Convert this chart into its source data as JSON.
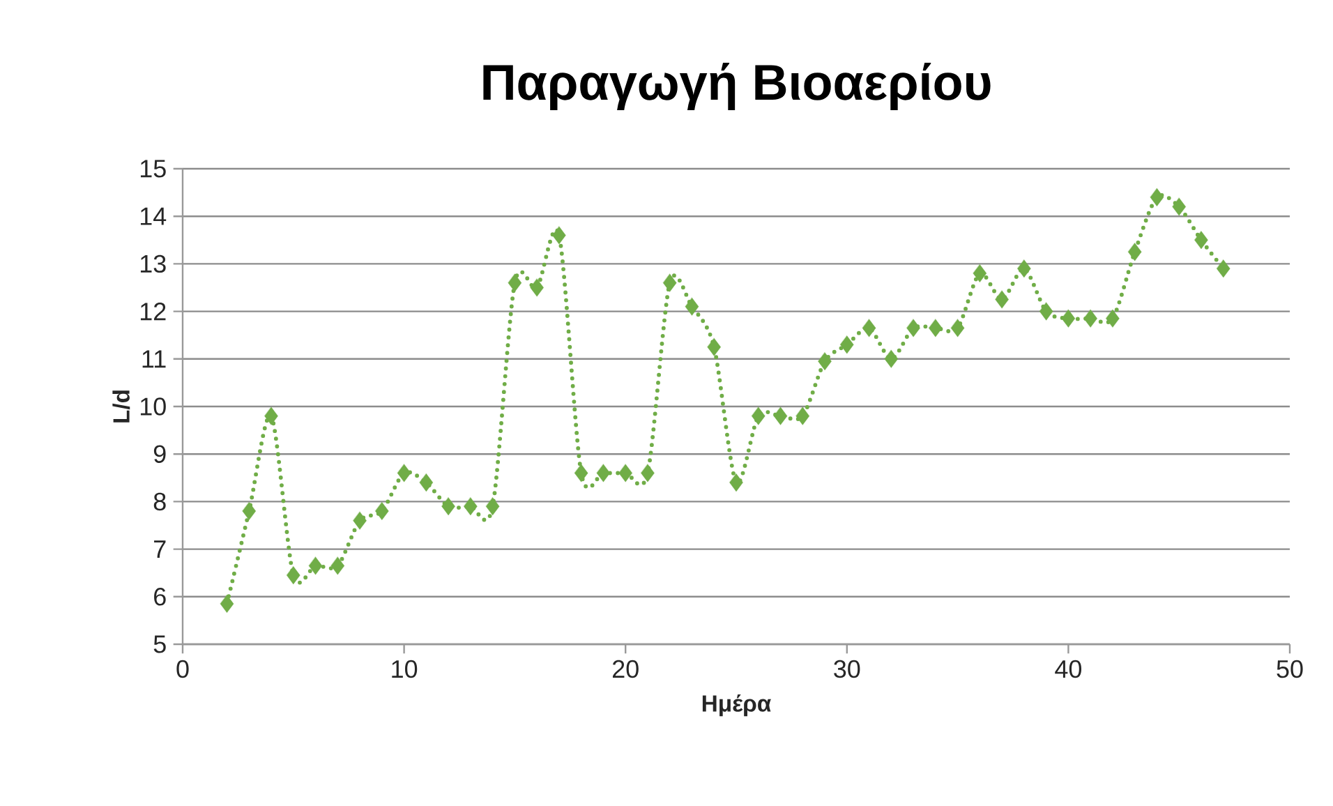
{
  "chart_data": {
    "type": "line",
    "title": "Παραγωγή Βιοαερίου",
    "xlabel": "Ημέρα",
    "ylabel": "L/d",
    "x": [
      2,
      3,
      4,
      5,
      6,
      7,
      8,
      9,
      10,
      11,
      12,
      13,
      14,
      15,
      16,
      17,
      18,
      19,
      20,
      21,
      22,
      23,
      24,
      25,
      26,
      27,
      28,
      29,
      30,
      31,
      32,
      33,
      34,
      35,
      36,
      37,
      38,
      39,
      40,
      41,
      42,
      43,
      44,
      45,
      46,
      47
    ],
    "series": [
      {
        "color": "#70ad47",
        "values": [
          5.85,
          7.8,
          9.8,
          6.45,
          6.65,
          6.65,
          7.6,
          7.8,
          8.6,
          8.4,
          7.9,
          7.9,
          7.9,
          12.6,
          12.5,
          13.6,
          8.6,
          8.6,
          8.6,
          8.6,
          12.6,
          12.1,
          11.25,
          8.4,
          9.8,
          9.8,
          9.8,
          10.95,
          11.3,
          11.65,
          11.0,
          11.65,
          11.65,
          11.65,
          12.8,
          12.25,
          12.9,
          12.0,
          11.85,
          11.85,
          11.85,
          13.25,
          14.4,
          14.2,
          13.5,
          12.9
        ]
      }
    ],
    "xlim": [
      0,
      50
    ],
    "xticks": [
      0,
      10,
      20,
      30,
      40,
      50
    ],
    "ylim": [
      5,
      15
    ],
    "yticks": [
      5,
      6,
      7,
      8,
      9,
      10,
      11,
      12,
      13,
      14,
      15
    ],
    "grid": "y",
    "marker": "diamond",
    "line_style": "dotted"
  }
}
